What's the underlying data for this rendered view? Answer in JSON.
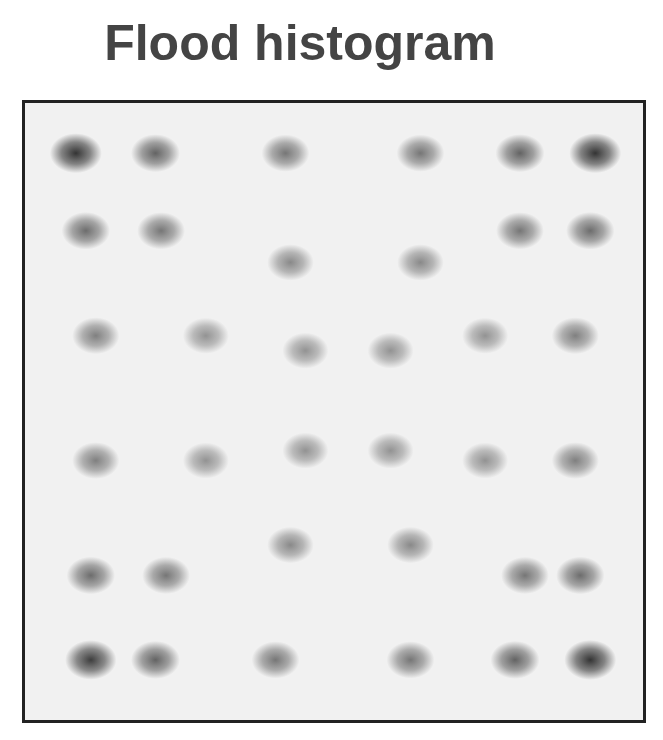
{
  "chart_data": {
    "type": "scatter",
    "title": "Flood histogram",
    "x": [
      8.5,
      21.3,
      42.2,
      63.9,
      79.9,
      92.0,
      10.1,
      22.2,
      43.0,
      63.9,
      79.9,
      91.2,
      11.7,
      29.4,
      45.4,
      59.1,
      74.3,
      88.8,
      11.7,
      29.4,
      45.4,
      59.1,
      74.3,
      88.8,
      10.9,
      23.0,
      43.0,
      62.3,
      80.7,
      89.6,
      10.9,
      21.3,
      40.6,
      62.3,
      79.1,
      91.2
    ],
    "values": [
      91.6,
      91.6,
      91.6,
      91.6,
      91.6,
      91.6,
      79.1,
      79.1,
      74.0,
      74.0,
      79.1,
      79.1,
      62.2,
      62.2,
      59.8,
      59.8,
      62.2,
      62.2,
      42.1,
      42.1,
      43.7,
      43.7,
      42.1,
      42.1,
      23.6,
      23.6,
      28.5,
      28.5,
      23.6,
      23.6,
      10.0,
      10.0,
      10.0,
      10.0,
      10.0,
      10.0
    ],
    "intensity": [
      1.0,
      0.75,
      0.65,
      0.65,
      0.75,
      1.0,
      0.7,
      0.65,
      0.55,
      0.55,
      0.65,
      0.7,
      0.6,
      0.5,
      0.5,
      0.5,
      0.5,
      0.6,
      0.6,
      0.5,
      0.5,
      0.5,
      0.5,
      0.6,
      0.7,
      0.65,
      0.55,
      0.55,
      0.65,
      0.7,
      0.95,
      0.75,
      0.65,
      0.65,
      0.75,
      1.0
    ],
    "xlim": [
      0,
      100
    ],
    "ylim": [
      0,
      100
    ],
    "tick_labels": false,
    "color": "#2a2a2a"
  }
}
